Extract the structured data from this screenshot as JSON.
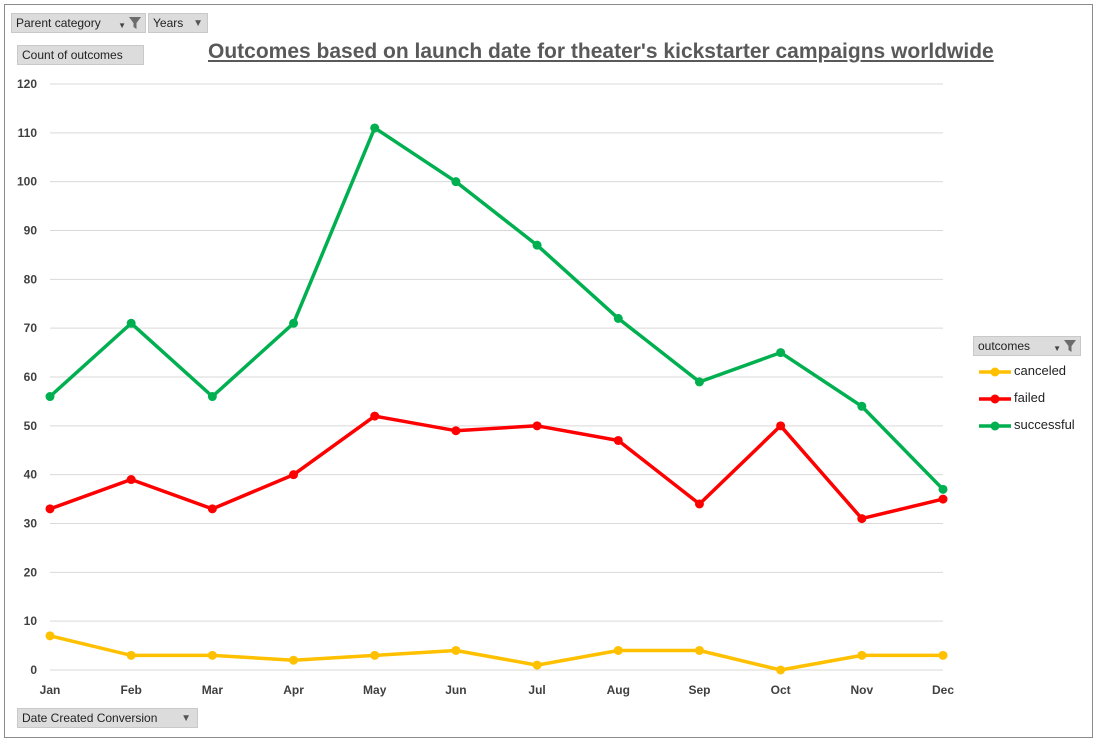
{
  "filters": {
    "parent_category": "Parent category",
    "years": "Years",
    "value_field": "Count of outcomes",
    "axis_field": "Date Created Conversion",
    "legend_field": "outcomes"
  },
  "icons": {
    "filter": "funnel-icon",
    "dropdown": "chevron-down-icon"
  },
  "chart_data": {
    "type": "line",
    "title": "Outcomes based on launch date for theater's kickstarter campaigns worldwide",
    "xlabel": "",
    "ylabel": "",
    "categories": [
      "Jan",
      "Feb",
      "Mar",
      "Apr",
      "May",
      "Jun",
      "Jul",
      "Aug",
      "Sep",
      "Oct",
      "Nov",
      "Dec"
    ],
    "ylim": [
      0,
      120
    ],
    "yticks": [
      0,
      10,
      20,
      30,
      40,
      50,
      60,
      70,
      80,
      90,
      100,
      110,
      120
    ],
    "grid": true,
    "legend_position": "right",
    "series": [
      {
        "name": "canceled",
        "color": "#FFC000",
        "values": [
          7,
          3,
          3,
          2,
          3,
          4,
          1,
          4,
          4,
          0,
          3,
          3
        ]
      },
      {
        "name": "failed",
        "color": "#FF0000",
        "values": [
          33,
          39,
          33,
          40,
          52,
          49,
          50,
          47,
          34,
          50,
          31,
          35
        ]
      },
      {
        "name": "successful",
        "color": "#00B050",
        "values": [
          56,
          71,
          56,
          71,
          111,
          100,
          87,
          72,
          59,
          65,
          54,
          37
        ]
      }
    ]
  }
}
